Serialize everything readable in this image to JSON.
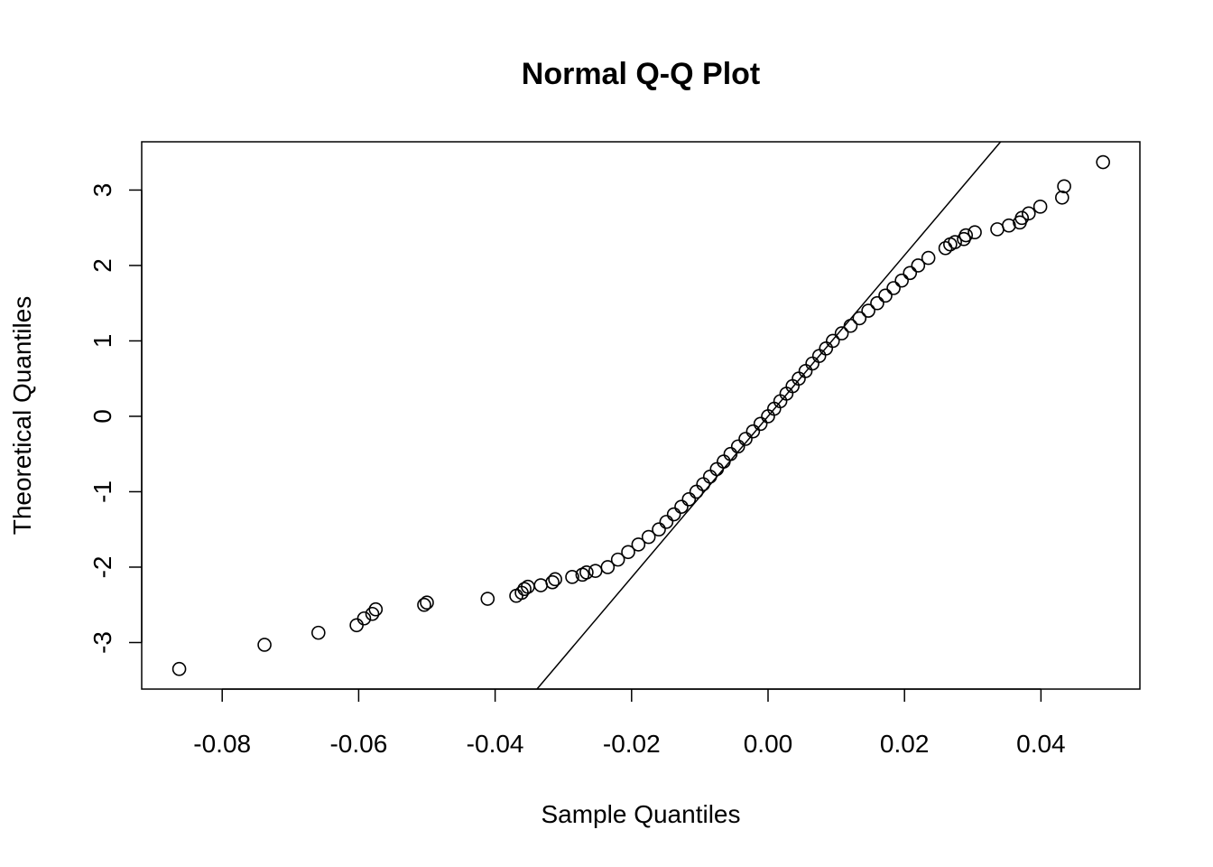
{
  "chart_data": {
    "type": "scatter",
    "title": "Normal Q-Q Plot",
    "xlabel": "Sample Quantiles",
    "ylabel": "Theoretical Quantiles",
    "xlim": [
      -0.0918,
      0.0545
    ],
    "ylim": [
      -3.617,
      3.64
    ],
    "xticks": [
      -0.08,
      -0.06,
      -0.04,
      -0.02,
      0.0,
      0.02,
      0.04
    ],
    "xtick_labels": [
      "-0.08",
      "-0.06",
      "-0.04",
      "-0.02",
      "0.00",
      "0.02",
      "0.04"
    ],
    "yticks": [
      -3,
      -2,
      -1,
      0,
      1,
      2,
      3
    ],
    "ytick_labels": [
      "-3",
      "-2",
      "-1",
      "0",
      "1",
      "2",
      "3"
    ],
    "grid": false,
    "marker": "open-circle",
    "reference_line": {
      "slope": 106.8,
      "intercept": 0.0
    },
    "points": [
      [
        -0.0863,
        -3.35
      ],
      [
        -0.0738,
        -3.03
      ],
      [
        -0.0659,
        -2.87
      ],
      [
        -0.0603,
        -2.77
      ],
      [
        -0.0592,
        -2.68
      ],
      [
        -0.058,
        -2.62
      ],
      [
        -0.0575,
        -2.56
      ],
      [
        -0.0504,
        -2.5
      ],
      [
        -0.05,
        -2.47
      ],
      [
        -0.0411,
        -2.42
      ],
      [
        -0.0369,
        -2.38
      ],
      [
        -0.0361,
        -2.34
      ],
      [
        -0.0357,
        -2.29
      ],
      [
        -0.0352,
        -2.26
      ],
      [
        -0.0333,
        -2.24
      ],
      [
        -0.0316,
        -2.2
      ],
      [
        -0.0312,
        -2.16
      ],
      [
        -0.0287,
        -2.13
      ],
      [
        -0.0272,
        -2.1
      ],
      [
        -0.0266,
        -2.07
      ],
      [
        -0.0253,
        -2.05
      ],
      [
        -0.0235,
        -2.0
      ],
      [
        -0.022,
        -1.9
      ],
      [
        -0.0205,
        -1.8
      ],
      [
        -0.019,
        -1.7
      ],
      [
        -0.0175,
        -1.6
      ],
      [
        -0.016,
        -1.5
      ],
      [
        -0.0149,
        -1.4
      ],
      [
        -0.0138,
        -1.3
      ],
      [
        -0.0127,
        -1.2
      ],
      [
        -0.0116,
        -1.1
      ],
      [
        -0.0105,
        -1.0
      ],
      [
        -0.0095,
        -0.9
      ],
      [
        -0.0085,
        -0.8
      ],
      [
        -0.0075,
        -0.7
      ],
      [
        -0.0065,
        -0.6
      ],
      [
        -0.0055,
        -0.5
      ],
      [
        -0.0044,
        -0.4
      ],
      [
        -0.0033,
        -0.3
      ],
      [
        -0.0022,
        -0.2
      ],
      [
        -0.0011,
        -0.1
      ],
      [
        0.0,
        0.0
      ],
      [
        0.0009,
        0.1
      ],
      [
        0.0018,
        0.2
      ],
      [
        0.0027,
        0.3
      ],
      [
        0.0036,
        0.4
      ],
      [
        0.0045,
        0.5
      ],
      [
        0.0055,
        0.6
      ],
      [
        0.0065,
        0.7
      ],
      [
        0.0075,
        0.8
      ],
      [
        0.0085,
        0.9
      ],
      [
        0.0095,
        1.0
      ],
      [
        0.0108,
        1.1
      ],
      [
        0.0121,
        1.2
      ],
      [
        0.0134,
        1.3
      ],
      [
        0.0147,
        1.4
      ],
      [
        0.016,
        1.5
      ],
      [
        0.0172,
        1.6
      ],
      [
        0.0184,
        1.7
      ],
      [
        0.0196,
        1.8
      ],
      [
        0.0208,
        1.9
      ],
      [
        0.022,
        2.0
      ],
      [
        0.0235,
        2.1
      ],
      [
        0.026,
        2.23
      ],
      [
        0.0267,
        2.28
      ],
      [
        0.0274,
        2.31
      ],
      [
        0.0287,
        2.35
      ],
      [
        0.029,
        2.4
      ],
      [
        0.0303,
        2.44
      ],
      [
        0.0336,
        2.48
      ],
      [
        0.0353,
        2.53
      ],
      [
        0.0369,
        2.57
      ],
      [
        0.0372,
        2.63
      ],
      [
        0.0382,
        2.69
      ],
      [
        0.0399,
        2.78
      ],
      [
        0.0431,
        2.9
      ],
      [
        0.0434,
        3.05
      ],
      [
        0.0491,
        3.37
      ]
    ]
  }
}
